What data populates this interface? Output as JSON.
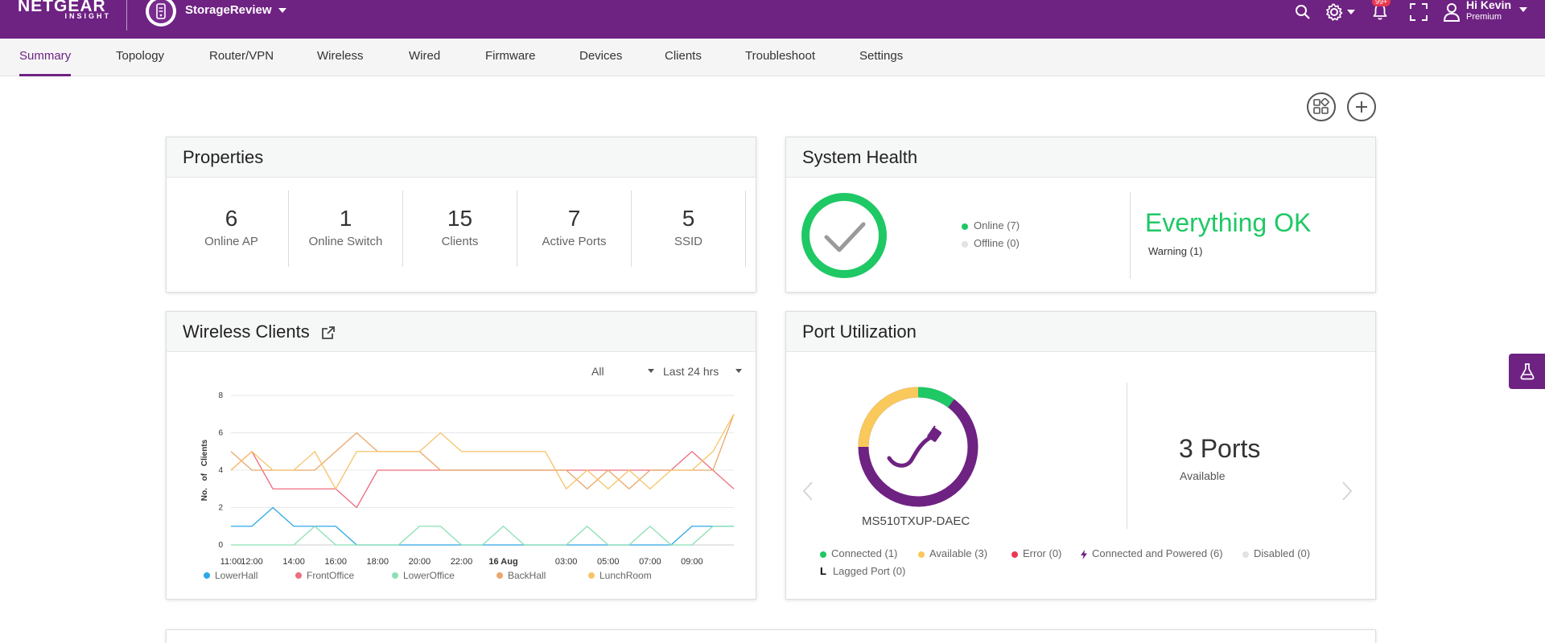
{
  "brand": {
    "name": "NETGEAR",
    "sub": "INSIGHT"
  },
  "network": {
    "name": "StorageReview"
  },
  "header": {
    "notifications_count": "99+",
    "user_greeting": "Hi Kevin",
    "user_plan": "Premium",
    "icons": [
      "search-icon",
      "gear-icon",
      "bell-icon",
      "fullscreen-icon",
      "user-icon"
    ]
  },
  "tabs": [
    {
      "label": "Summary",
      "active": true
    },
    {
      "label": "Topology"
    },
    {
      "label": "Router/VPN"
    },
    {
      "label": "Wireless"
    },
    {
      "label": "Wired"
    },
    {
      "label": "Firmware"
    },
    {
      "label": "Devices"
    },
    {
      "label": "Clients"
    },
    {
      "label": "Troubleshoot"
    },
    {
      "label": "Settings"
    }
  ],
  "properties": {
    "title": "Properties",
    "stats": [
      {
        "value": "6",
        "label": "Online AP"
      },
      {
        "value": "1",
        "label": "Online Switch"
      },
      {
        "value": "15",
        "label": "Clients"
      },
      {
        "value": "7",
        "label": "Active Ports"
      },
      {
        "value": "5",
        "label": "SSID"
      }
    ]
  },
  "system_health": {
    "title": "System Health",
    "online": "Online (7)",
    "offline": "Offline (0)",
    "status": "Everything OK",
    "warning": "Warning (1)"
  },
  "wireless_clients": {
    "title": "Wireless Clients",
    "filter_all": "All",
    "filter_range": "Last 24 hrs"
  },
  "port_utilization": {
    "title": "Port Utilization",
    "device": "MS510TXUP-DAEC",
    "ports_count": "3 Ports",
    "ports_label": "Available",
    "legend": [
      {
        "label": "Connected (1)",
        "color": "#1ec865"
      },
      {
        "label": "Available (3)",
        "color": "#f9c95b"
      },
      {
        "label": "Error (0)",
        "color": "#e8384f"
      },
      {
        "label": "Connected and Powered (6)",
        "color": "#6e2282"
      },
      {
        "label": "Disabled (0)",
        "color": "#dddddd"
      },
      {
        "label": "Lagged Port (0)",
        "color": "#000000"
      }
    ]
  },
  "chart_data": {
    "type": "line",
    "ylabel": "No. of Clients",
    "xlabel": "",
    "ylim": [
      0,
      8
    ],
    "yticks": [
      0,
      2,
      4,
      6,
      8
    ],
    "x": [
      "11:00",
      "12:00",
      "13:00",
      "14:00",
      "15:00",
      "16:00",
      "17:00",
      "18:00",
      "19:00",
      "20:00",
      "21:00",
      "22:00",
      "23:00",
      "16 Aug",
      "01:00",
      "02:00",
      "03:00",
      "04:00",
      "05:00",
      "06:00",
      "07:00",
      "08:00",
      "09:00",
      "10:00",
      "11:00"
    ],
    "xticks": [
      "12:00",
      "14:00",
      "16:00",
      "18:00",
      "20:00",
      "22:00",
      "16 Aug",
      "03:00",
      "05:00",
      "07:00",
      "09:00",
      "11:00"
    ],
    "series": [
      {
        "name": "LowerHall",
        "color": "#2ea8e6",
        "values": [
          1,
          1,
          2,
          1,
          1,
          1,
          0,
          0,
          0,
          0,
          0,
          0,
          0,
          0,
          0,
          0,
          0,
          0,
          0,
          0,
          0,
          0,
          1,
          1,
          1
        ]
      },
      {
        "name": "FrontOffice",
        "color": "#ee6e7e",
        "values": [
          4,
          5,
          3,
          3,
          3,
          3,
          2,
          4,
          4,
          4,
          4,
          4,
          4,
          4,
          4,
          4,
          4,
          4,
          4,
          4,
          4,
          4,
          5,
          4,
          3
        ]
      },
      {
        "name": "LowerOffice",
        "color": "#8be0b3",
        "values": [
          0,
          0,
          0,
          0,
          1,
          0,
          0,
          0,
          0,
          1,
          1,
          0,
          0,
          1,
          0,
          0,
          0,
          1,
          0,
          0,
          1,
          0,
          0,
          1,
          1
        ]
      },
      {
        "name": "BackHall",
        "color": "#e8a86b",
        "values": [
          5,
          4,
          4,
          4,
          4,
          5,
          6,
          5,
          5,
          5,
          4,
          4,
          4,
          4,
          4,
          4,
          4,
          3,
          4,
          3,
          4,
          4,
          4,
          4,
          7
        ]
      },
      {
        "name": "LunchRoom",
        "color": "#f6c46b",
        "values": [
          4,
          5,
          4,
          4,
          5,
          3,
          5,
          5,
          5,
          5,
          6,
          5,
          5,
          5,
          5,
          5,
          3,
          4,
          3,
          4,
          3,
          4,
          4,
          5,
          7
        ]
      }
    ]
  }
}
